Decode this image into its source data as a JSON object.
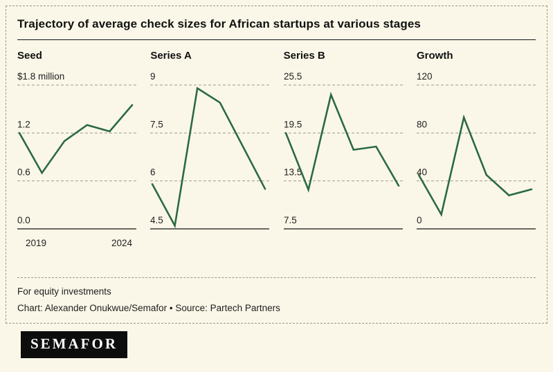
{
  "title": "Trajectory of average check sizes for African startups at various stages",
  "footer": {
    "note": "For equity investments",
    "credit": "Chart: Alexander Onukwue/Semafor • Source: Partech Partners"
  },
  "logo": "SEMAFOR",
  "colors": {
    "line": "#2a6a44",
    "background": "#fbf7e8",
    "grid": "#9b9a8c",
    "axis": "#111111"
  },
  "chart_data": [
    {
      "type": "line",
      "name": "Seed",
      "x": [
        2019,
        2020,
        2021,
        2022,
        2023,
        2024
      ],
      "values": [
        1.2,
        0.7,
        1.1,
        1.3,
        1.22,
        1.55
      ],
      "ticks": [
        {
          "label": "$1.8 million",
          "value": 1.8
        },
        {
          "label": "1.2",
          "value": 1.2
        },
        {
          "label": "0.6",
          "value": 0.6
        },
        {
          "label": "0.0",
          "value": 0.0
        }
      ],
      "ylim": [
        0,
        1.8
      ],
      "x_labels": [
        "2019",
        "2024"
      ]
    },
    {
      "type": "line",
      "name": "Series A",
      "x": [
        2019,
        2020,
        2021,
        2022,
        2023,
        2024
      ],
      "values": [
        5.9,
        4.6,
        8.9,
        8.45,
        7.1,
        5.75
      ],
      "ticks": [
        {
          "label": "9",
          "value": 9
        },
        {
          "label": "7.5",
          "value": 7.5
        },
        {
          "label": "6",
          "value": 6
        },
        {
          "label": "4.5",
          "value": 4.5
        }
      ],
      "ylim": [
        4.5,
        9
      ]
    },
    {
      "type": "line",
      "name": "Series B",
      "x": [
        2019,
        2020,
        2021,
        2022,
        2023,
        2024
      ],
      "values": [
        19.5,
        12.4,
        24.3,
        17.4,
        17.8,
        12.9
      ],
      "ticks": [
        {
          "label": "25.5",
          "value": 25.5
        },
        {
          "label": "19.5",
          "value": 19.5
        },
        {
          "label": "13.5",
          "value": 13.5
        },
        {
          "label": "7.5",
          "value": 7.5
        }
      ],
      "ylim": [
        7.5,
        25.5
      ]
    },
    {
      "type": "line",
      "name": "Growth",
      "x": [
        2019,
        2020,
        2021,
        2022,
        2023,
        2024
      ],
      "values": [
        45,
        12,
        93,
        45,
        28,
        33
      ],
      "ticks": [
        {
          "label": "120",
          "value": 120
        },
        {
          "label": "80",
          "value": 80
        },
        {
          "label": "40",
          "value": 40
        },
        {
          "label": "0",
          "value": 0
        }
      ],
      "ylim": [
        0,
        120
      ]
    }
  ]
}
